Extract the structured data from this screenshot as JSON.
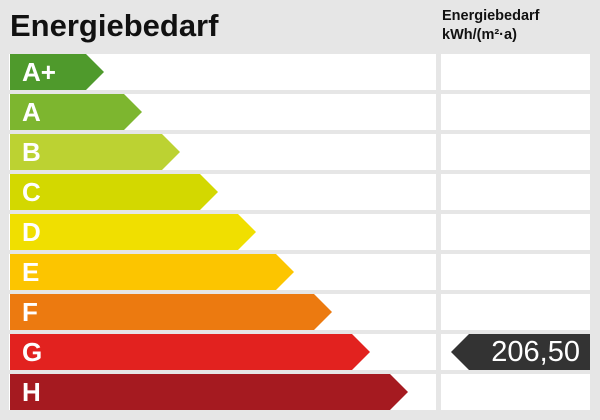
{
  "title": "Energiebedarf",
  "column_header": {
    "line1": "Energiebedarf",
    "line2": "kWh/(m²·a)"
  },
  "classes": [
    {
      "label": "A+",
      "color": "#4f9a2c"
    },
    {
      "label": "A",
      "color": "#7db62f"
    },
    {
      "label": "B",
      "color": "#bcd232"
    },
    {
      "label": "C",
      "color": "#d3d800"
    },
    {
      "label": "D",
      "color": "#f0df00"
    },
    {
      "label": "E",
      "color": "#fcc500"
    },
    {
      "label": "F",
      "color": "#ec7a10"
    },
    {
      "label": "G",
      "color": "#e2221f"
    },
    {
      "label": "H",
      "color": "#a51a20"
    }
  ],
  "marker": {
    "value": "206,50",
    "class": "G",
    "color": "#333333"
  }
}
